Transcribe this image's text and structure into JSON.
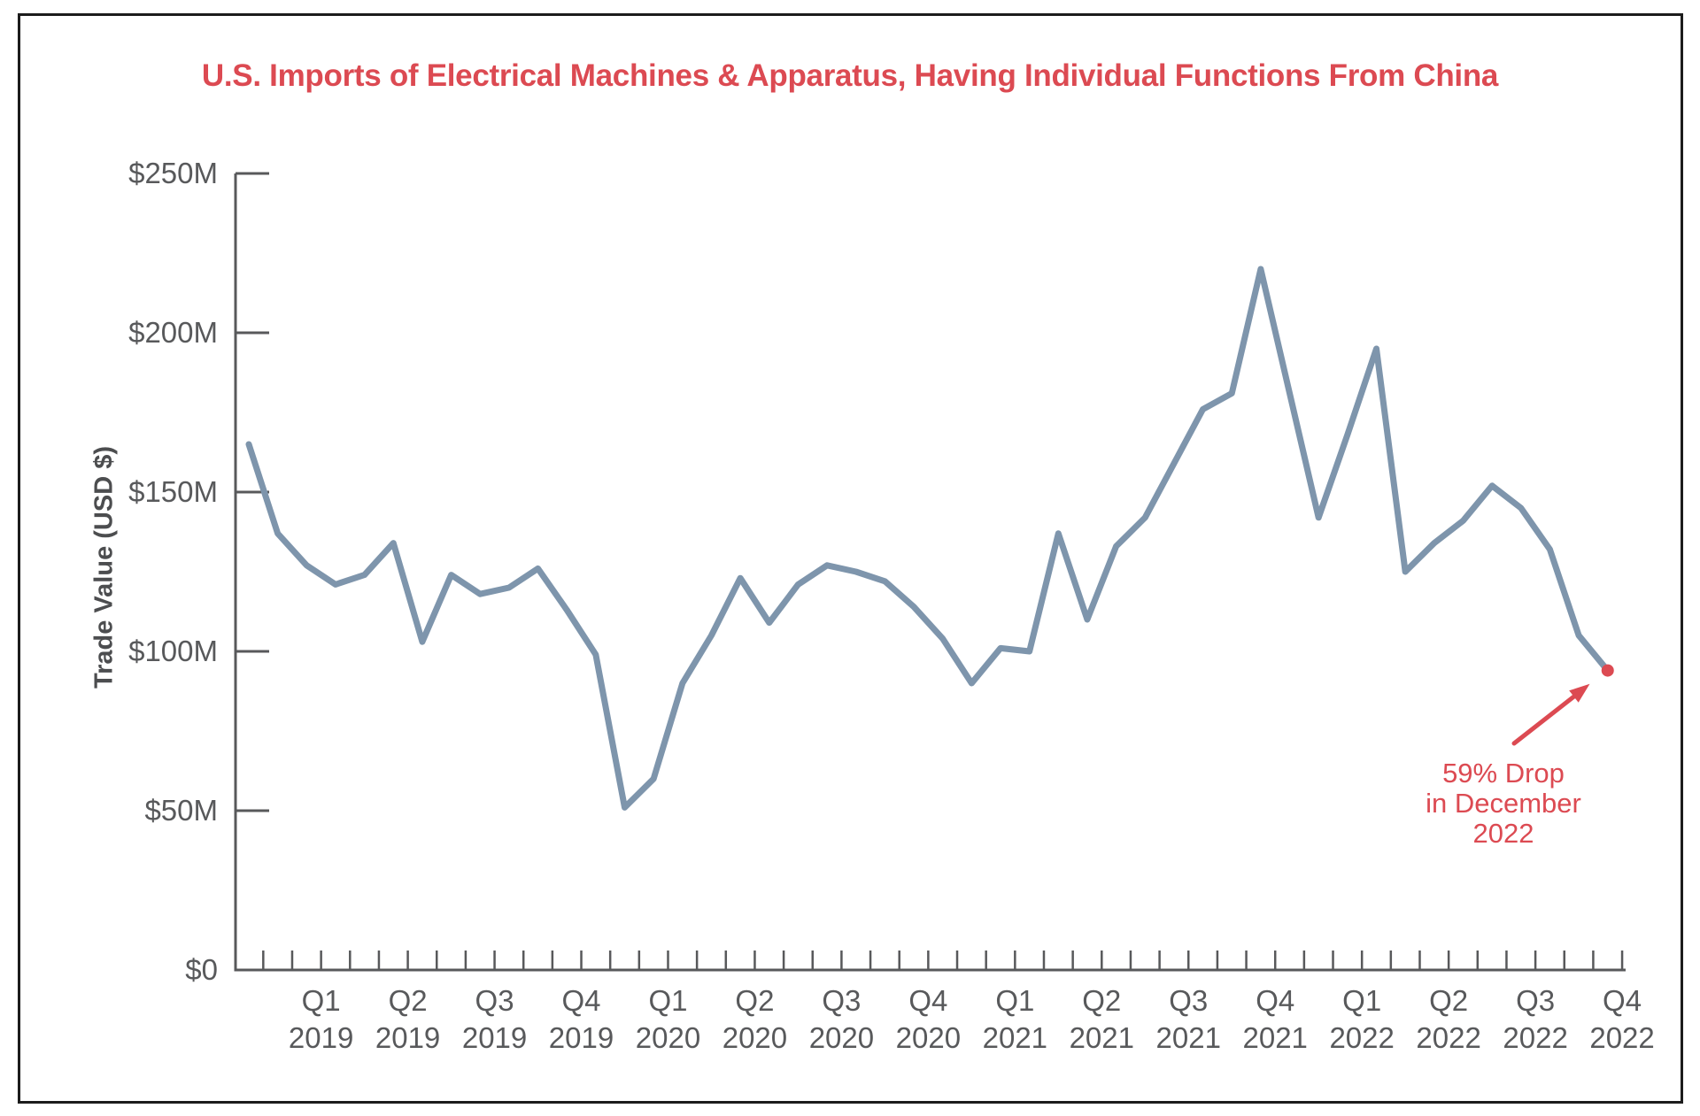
{
  "title": "U.S. Imports of Electrical Machines & Apparatus, Having Individual Functions From China",
  "colors": {
    "accent_red": "#dc4a52",
    "line_blue": "#7e95ac",
    "axis_gray": "#58595b",
    "axis_title_gray": "#4c4d4f",
    "frame_black": "#1c1c1c",
    "background": "#ffffff"
  },
  "annotation": {
    "lines": [
      "59% Drop",
      "in December",
      "2022"
    ],
    "full_text": "59% Drop in December 2022"
  },
  "chart_data": {
    "type": "line",
    "title": "U.S. Imports of Electrical Machines & Apparatus, Having Individual Functions From China",
    "xlabel": "",
    "ylabel": "Trade Value (USD $)",
    "x_unit": "month",
    "x_start": "Jan 2019",
    "x_end": "Dec 2022",
    "x_minor_ticks": "monthly",
    "ylim": [
      0,
      250
    ],
    "grid": false,
    "legend": false,
    "y_ticks": [
      {
        "label": "$0",
        "value": 0
      },
      {
        "label": "$50M",
        "value": 50
      },
      {
        "label": "$100M",
        "value": 100
      },
      {
        "label": "$150M",
        "value": 150
      },
      {
        "label": "$200M",
        "value": 200
      },
      {
        "label": "$250M",
        "value": 250
      }
    ],
    "x_quarter_labels": [
      {
        "quarter": "Q1",
        "year": "2019"
      },
      {
        "quarter": "Q2",
        "year": "2019"
      },
      {
        "quarter": "Q3",
        "year": "2019"
      },
      {
        "quarter": "Q4",
        "year": "2019"
      },
      {
        "quarter": "Q1",
        "year": "2020"
      },
      {
        "quarter": "Q2",
        "year": "2020"
      },
      {
        "quarter": "Q3",
        "year": "2020"
      },
      {
        "quarter": "Q4",
        "year": "2020"
      },
      {
        "quarter": "Q1",
        "year": "2021"
      },
      {
        "quarter": "Q2",
        "year": "2021"
      },
      {
        "quarter": "Q3",
        "year": "2021"
      },
      {
        "quarter": "Q4",
        "year": "2021"
      },
      {
        "quarter": "Q1",
        "year": "2022"
      },
      {
        "quarter": "Q2",
        "year": "2022"
      },
      {
        "quarter": "Q3",
        "year": "2022"
      },
      {
        "quarter": "Q4",
        "year": "2022"
      }
    ],
    "series": [
      {
        "name": "Trade Value (USD $M), monthly Jan 2019 - Dec 2022",
        "values": [
          165,
          137,
          127,
          121,
          124,
          134,
          103,
          124,
          118,
          120,
          126,
          113,
          99,
          51,
          60,
          90,
          105,
          123,
          109,
          121,
          127,
          125,
          122,
          114,
          104,
          90,
          101,
          100,
          137,
          110,
          133,
          142,
          159,
          176,
          181,
          220,
          181,
          142,
          168,
          195,
          125,
          134,
          141,
          152,
          145,
          132,
          105,
          94
        ]
      }
    ],
    "highlighted_point": {
      "month": "December 2022",
      "value": 94
    }
  }
}
